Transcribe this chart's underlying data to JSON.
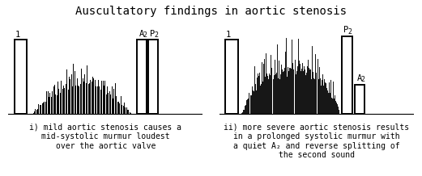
{
  "title": "Auscultatory findings in aortic stenosis",
  "title_fontsize": 10,
  "bg_color": "#ffffff",
  "text_color": "#000000",
  "panel_i_label": "i) mild aortic stenosis causes a\nmid-systolic murmur loudest\nover the aortic valve",
  "panel_ii_label": "ii) more severe aortic stenosis results\nin a prolonged systolic murmur with\na quiet A₂ and reverse splitting of\nthe second sound",
  "label_fontsize": 7.0,
  "annotation_fontsize": 7.5,
  "sub_fontsize": 6.0
}
